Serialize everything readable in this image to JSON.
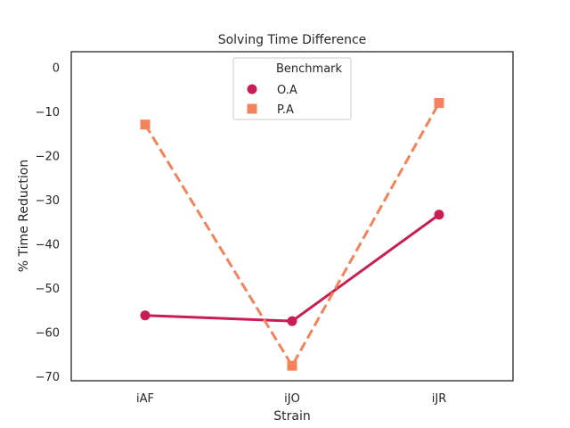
{
  "chart_data": {
    "type": "line",
    "title": "Solving Time Difference",
    "xlabel": "Strain",
    "ylabel": "% Time Reduction",
    "categories": [
      "iAF",
      "iJO",
      "iJR"
    ],
    "ylim": [
      -71,
      3.5
    ],
    "yticks": [
      0,
      -10,
      -20,
      -30,
      -40,
      -50,
      -60,
      -70
    ],
    "grid": false,
    "legend": {
      "title": "Benchmark",
      "placement": "top-center"
    },
    "series": [
      {
        "name": "O.A",
        "values": [
          -56.2,
          -57.5,
          -33.4
        ],
        "color": "#c81e54",
        "marker": "circle",
        "linestyle": "solid"
      },
      {
        "name": "P.A",
        "values": [
          -13.0,
          -67.6,
          -8.1
        ],
        "color": "#f2835a",
        "marker": "square",
        "linestyle": "dashed"
      }
    ]
  }
}
